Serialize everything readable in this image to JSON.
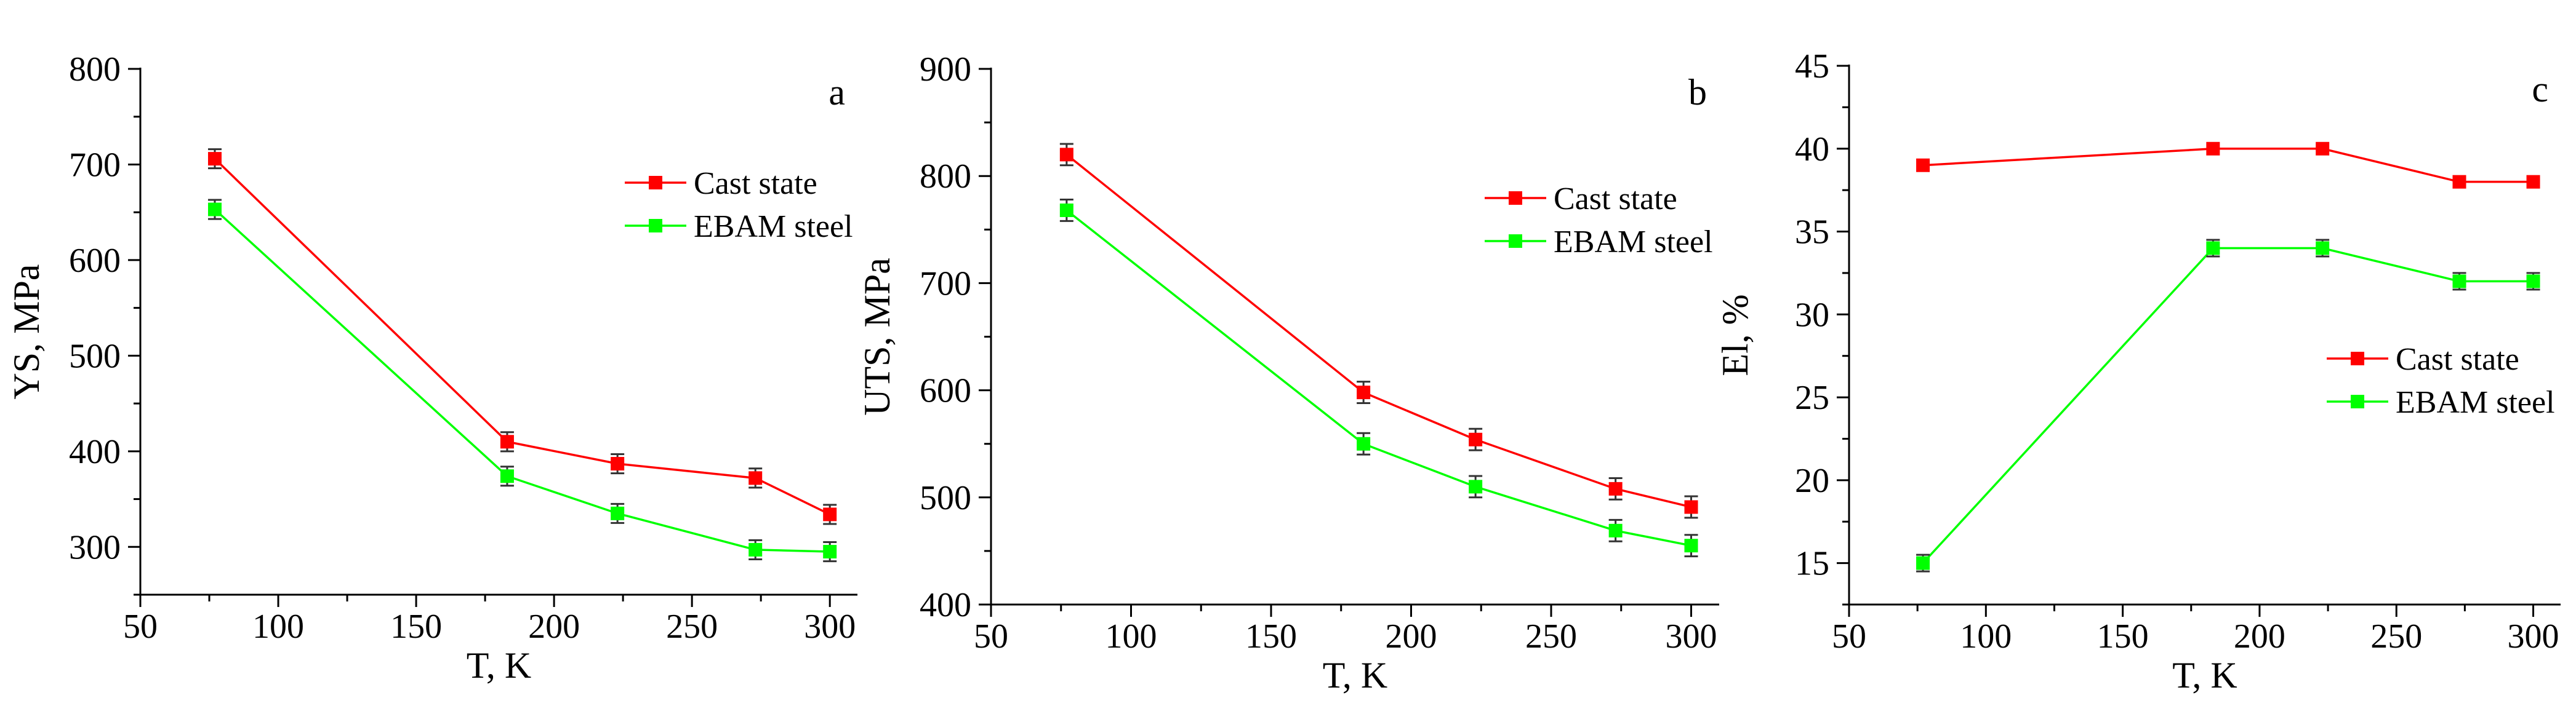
{
  "chart_data": [
    {
      "type": "line",
      "panel_letter": "a",
      "xlabel": "T, K",
      "ylabel": "YS, MPa",
      "xlim": [
        50,
        310
      ],
      "ylim": [
        250,
        800
      ],
      "xticks": [
        50,
        100,
        150,
        200,
        250,
        300
      ],
      "yticks": [
        300,
        400,
        500,
        600,
        700,
        800
      ],
      "legend_position": "upper-right",
      "x": [
        77,
        183,
        223,
        273,
        300
      ],
      "series": [
        {
          "name": "Cast state",
          "color": "#ff0000",
          "values": [
            706,
            410,
            387,
            372,
            334
          ],
          "errors": [
            10,
            10,
            10,
            10,
            10
          ]
        },
        {
          "name": "EBAM steel",
          "color": "#00ff00",
          "values": [
            653,
            374,
            335,
            297,
            295
          ],
          "errors": [
            10,
            10,
            10,
            10,
            10
          ]
        }
      ]
    },
    {
      "type": "line",
      "panel_letter": "b",
      "xlabel": "T, K",
      "ylabel": "UTS, MPa",
      "xlim": [
        50,
        310
      ],
      "ylim": [
        400,
        900
      ],
      "xticks": [
        50,
        100,
        150,
        200,
        250,
        300
      ],
      "yticks": [
        400,
        500,
        600,
        700,
        800,
        900
      ],
      "legend_position": "upper-right",
      "x": [
        77,
        183,
        223,
        273,
        300
      ],
      "series": [
        {
          "name": "Cast state",
          "color": "#ff0000",
          "values": [
            820,
            598,
            554,
            508,
            491
          ],
          "errors": [
            10,
            10,
            10,
            10,
            10
          ]
        },
        {
          "name": "EBAM steel",
          "color": "#00ff00",
          "values": [
            768,
            550,
            510,
            469,
            455
          ],
          "errors": [
            10,
            10,
            10,
            10,
            10
          ]
        }
      ]
    },
    {
      "type": "line",
      "panel_letter": "c",
      "xlabel": "T, K",
      "ylabel": "El, %",
      "xlim": [
        50,
        310
      ],
      "ylim": [
        12.5,
        45
      ],
      "xticks": [
        50,
        100,
        150,
        200,
        250,
        300
      ],
      "yticks": [
        15,
        20,
        25,
        30,
        35,
        40,
        45
      ],
      "legend_position": "right",
      "x": [
        77,
        183,
        223,
        273,
        300
      ],
      "series": [
        {
          "name": "Cast state",
          "color": "#ff0000",
          "values": [
            39,
            40,
            40,
            38,
            38
          ],
          "errors": [
            0,
            0,
            0,
            0,
            0
          ]
        },
        {
          "name": "EBAM steel",
          "color": "#00ff00",
          "values": [
            15,
            34,
            34,
            32,
            32
          ],
          "errors": [
            0.5,
            0.5,
            0.5,
            0.5,
            0.5
          ]
        }
      ]
    }
  ]
}
